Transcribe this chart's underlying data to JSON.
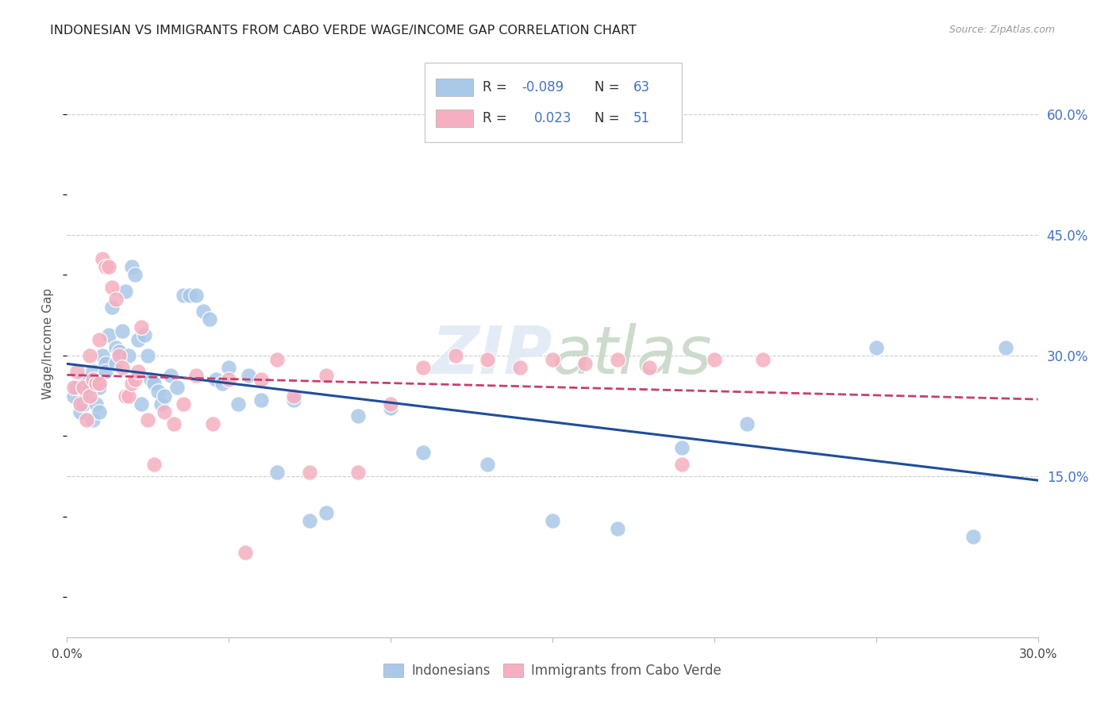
{
  "title": "INDONESIAN VS IMMIGRANTS FROM CABO VERDE WAGE/INCOME GAP CORRELATION CHART",
  "source": "Source: ZipAtlas.com",
  "ylabel": "Wage/Income Gap",
  "ytick_vals": [
    0.6,
    0.45,
    0.3,
    0.15
  ],
  "ytick_labels": [
    "60.0%",
    "45.0%",
    "30.0%",
    "15.0%"
  ],
  "xlim": [
    0.0,
    0.3
  ],
  "ylim": [
    -0.05,
    0.68
  ],
  "legend_label1": "Indonesians",
  "legend_label2": "Immigrants from Cabo Verde",
  "R1": -0.089,
  "N1": 63,
  "R2": 0.023,
  "N2": 51,
  "color_blue": "#aac8e8",
  "color_pink": "#f5afc0",
  "color_blue_text": "#4472c4",
  "color_blue_line": "#1f4e99",
  "color_pink_line": "#c44070",
  "blue_points_x": [
    0.002,
    0.003,
    0.004,
    0.005,
    0.005,
    0.006,
    0.007,
    0.008,
    0.008,
    0.009,
    0.01,
    0.01,
    0.01,
    0.011,
    0.012,
    0.012,
    0.013,
    0.014,
    0.015,
    0.015,
    0.016,
    0.017,
    0.018,
    0.019,
    0.02,
    0.021,
    0.022,
    0.023,
    0.024,
    0.025,
    0.026,
    0.027,
    0.028,
    0.029,
    0.03,
    0.032,
    0.034,
    0.036,
    0.038,
    0.04,
    0.042,
    0.044,
    0.046,
    0.048,
    0.05,
    0.053,
    0.056,
    0.06,
    0.065,
    0.07,
    0.075,
    0.08,
    0.09,
    0.1,
    0.11,
    0.13,
    0.15,
    0.17,
    0.19,
    0.21,
    0.25,
    0.28,
    0.29
  ],
  "blue_points_y": [
    0.25,
    0.26,
    0.23,
    0.27,
    0.24,
    0.25,
    0.26,
    0.28,
    0.22,
    0.24,
    0.27,
    0.26,
    0.23,
    0.3,
    0.29,
    0.28,
    0.325,
    0.36,
    0.29,
    0.31,
    0.305,
    0.33,
    0.38,
    0.3,
    0.41,
    0.4,
    0.32,
    0.24,
    0.325,
    0.3,
    0.27,
    0.265,
    0.255,
    0.24,
    0.25,
    0.275,
    0.26,
    0.375,
    0.375,
    0.375,
    0.355,
    0.345,
    0.27,
    0.265,
    0.285,
    0.24,
    0.275,
    0.245,
    0.155,
    0.245,
    0.095,
    0.105,
    0.225,
    0.235,
    0.18,
    0.165,
    0.095,
    0.085,
    0.185,
    0.215,
    0.31,
    0.075,
    0.31
  ],
  "pink_points_x": [
    0.002,
    0.003,
    0.004,
    0.005,
    0.006,
    0.007,
    0.007,
    0.008,
    0.009,
    0.01,
    0.01,
    0.011,
    0.012,
    0.013,
    0.014,
    0.015,
    0.016,
    0.017,
    0.018,
    0.019,
    0.02,
    0.021,
    0.022,
    0.023,
    0.025,
    0.027,
    0.03,
    0.033,
    0.036,
    0.04,
    0.045,
    0.05,
    0.055,
    0.06,
    0.065,
    0.07,
    0.075,
    0.08,
    0.09,
    0.1,
    0.11,
    0.12,
    0.13,
    0.14,
    0.15,
    0.16,
    0.17,
    0.18,
    0.19,
    0.2,
    0.215
  ],
  "pink_points_y": [
    0.26,
    0.28,
    0.24,
    0.26,
    0.22,
    0.3,
    0.25,
    0.27,
    0.265,
    0.265,
    0.32,
    0.42,
    0.41,
    0.41,
    0.385,
    0.37,
    0.3,
    0.285,
    0.25,
    0.25,
    0.265,
    0.27,
    0.28,
    0.335,
    0.22,
    0.165,
    0.23,
    0.215,
    0.24,
    0.275,
    0.215,
    0.27,
    0.055,
    0.27,
    0.295,
    0.25,
    0.155,
    0.275,
    0.155,
    0.24,
    0.285,
    0.3,
    0.295,
    0.285,
    0.295,
    0.29,
    0.295,
    0.285,
    0.165,
    0.295,
    0.295
  ]
}
